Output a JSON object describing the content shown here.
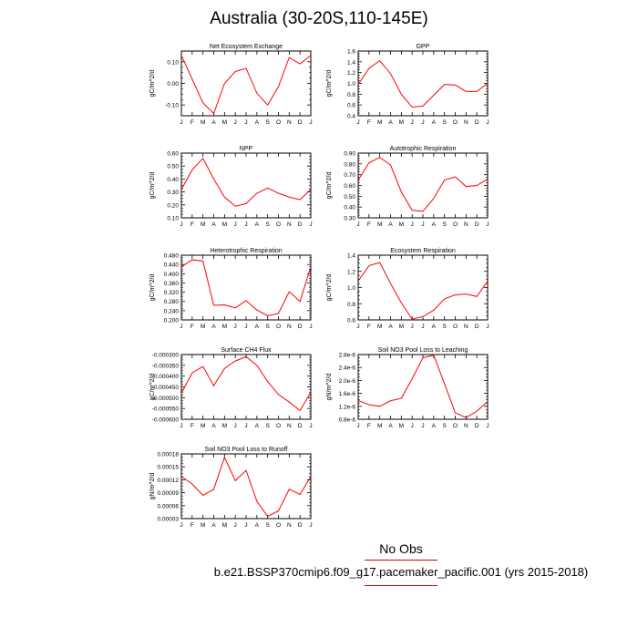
{
  "title": "Australia (30-20S,110-145E)",
  "legend": {
    "label": "No Obs",
    "caption": "b.e21.BSSP370cmip6.f09_g17.pacemaker_pacific.001 (yrs 2015-2018)"
  },
  "colors": {
    "line": "#ff0000",
    "legend_line": "#cc0000",
    "axis": "#000000"
  },
  "months": [
    "J",
    "F",
    "M",
    "A",
    "M",
    "J",
    "J",
    "A",
    "S",
    "O",
    "N",
    "D",
    "J"
  ],
  "chart_data": [
    {
      "type": "line",
      "title": "Net Ecosystem Exchange",
      "ylabel": "gC/m^2/d",
      "ylim": [
        -0.15,
        0.15
      ],
      "yticks": [
        "-0.10",
        "0.00",
        "0.10"
      ],
      "ytick_values": [
        -0.1,
        0.0,
        0.1
      ],
      "values": [
        0.13,
        0.02,
        -0.09,
        -0.14,
        0.0,
        0.055,
        0.07,
        -0.045,
        -0.1,
        -0.015,
        0.12,
        0.09,
        0.13
      ]
    },
    {
      "type": "line",
      "title": "GPP",
      "ylabel": "gC/m^2/d",
      "ylim": [
        0.4,
        1.6
      ],
      "yticks": [
        "0.4",
        "0.6",
        "0.8",
        "1.0",
        "1.2",
        "1.4",
        "1.6"
      ],
      "ytick_values": [
        0.4,
        0.6,
        0.8,
        1.0,
        1.2,
        1.4,
        1.6
      ],
      "values": [
        0.98,
        1.28,
        1.42,
        1.18,
        0.8,
        0.56,
        0.58,
        0.78,
        0.98,
        0.97,
        0.85,
        0.85,
        1.0
      ]
    },
    {
      "type": "line",
      "title": "NPP",
      "ylabel": "gC/m^2/d",
      "ylim": [
        0.1,
        0.6
      ],
      "yticks": [
        "0.10",
        "0.20",
        "0.30",
        "0.40",
        "0.50",
        "0.60"
      ],
      "ytick_values": [
        0.1,
        0.2,
        0.3,
        0.4,
        0.5,
        0.6
      ],
      "values": [
        0.32,
        0.47,
        0.56,
        0.4,
        0.26,
        0.19,
        0.21,
        0.29,
        0.33,
        0.29,
        0.26,
        0.24,
        0.32
      ]
    },
    {
      "type": "line",
      "title": "Autotrophic Respiration",
      "ylabel": "gC/m^2/d",
      "ylim": [
        0.3,
        0.9
      ],
      "yticks": [
        "0.30",
        "0.40",
        "0.50",
        "0.60",
        "0.70",
        "0.80",
        "0.90"
      ],
      "ytick_values": [
        0.3,
        0.4,
        0.5,
        0.6,
        0.7,
        0.8,
        0.9
      ],
      "values": [
        0.65,
        0.81,
        0.86,
        0.79,
        0.54,
        0.37,
        0.36,
        0.48,
        0.65,
        0.68,
        0.59,
        0.6,
        0.66
      ]
    },
    {
      "type": "line",
      "title": "Heterotrophic Respiration",
      "ylabel": "gC/m^2/d",
      "ylim": [
        0.2,
        0.48
      ],
      "yticks": [
        "0.200",
        "0.240",
        "0.280",
        "0.320",
        "0.360",
        "0.400",
        "0.440",
        "0.480"
      ],
      "ytick_values": [
        0.2,
        0.24,
        0.28,
        0.32,
        0.36,
        0.4,
        0.44,
        0.48
      ],
      "values": [
        0.43,
        0.46,
        0.455,
        0.263,
        0.265,
        0.252,
        0.284,
        0.243,
        0.218,
        0.228,
        0.322,
        0.28,
        0.43
      ]
    },
    {
      "type": "line",
      "title": "Ecosystem Respiration",
      "ylabel": "gC/m^2/d",
      "ylim": [
        0.6,
        1.4
      ],
      "yticks": [
        "0.6",
        "0.8",
        "1.0",
        "1.2",
        "1.4"
      ],
      "ytick_values": [
        0.6,
        0.8,
        1.0,
        1.2,
        1.4
      ],
      "values": [
        1.08,
        1.27,
        1.31,
        1.05,
        0.81,
        0.61,
        0.64,
        0.72,
        0.86,
        0.91,
        0.92,
        0.89,
        1.08
      ]
    },
    {
      "type": "line",
      "title": "Surface CH4 Flux",
      "ylabel": "gC/m^2/d",
      "ylim": [
        -0.0006,
        -0.0003
      ],
      "yticks": [
        "-0.000300",
        "-0.000350",
        "-0.000400",
        "-0.000450",
        "-0.000500",
        "-0.000550",
        "-0.000600"
      ],
      "ytick_values": [
        -0.0003,
        -0.00035,
        -0.0004,
        -0.00045,
        -0.0005,
        -0.00055,
        -0.0006
      ],
      "values": [
        -0.00048,
        -0.000385,
        -0.000355,
        -0.000445,
        -0.000365,
        -0.00033,
        -0.00031,
        -0.00035,
        -0.000425,
        -0.000485,
        -0.00052,
        -0.00056,
        -0.000475
      ]
    },
    {
      "type": "line",
      "title": "Soil NO3 Pool Loss to Leaching",
      "ylabel": "gN/m^2/d",
      "ylim": [
        8e-07,
        2.8e-06
      ],
      "yticks": [
        "0.8e-6",
        "1.2e-6",
        "1.6e-6",
        "2.0e-6",
        "2.4e-6",
        "2.8e-6"
      ],
      "ytick_values": [
        8e-07,
        1.2e-06,
        1.6e-06,
        2e-06,
        2.4e-06,
        2.8e-06
      ],
      "values": [
        1.38e-06,
        1.25e-06,
        1.2e-06,
        1.37e-06,
        1.45e-06,
        2.05e-06,
        2.7e-06,
        2.78e-06,
        1.9e-06,
        1e-06,
        8.5e-07,
        1.05e-06,
        1.35e-06
      ]
    },
    {
      "type": "line",
      "title": "Soil NO3 Pool Loss to Runoff",
      "ylabel": "gN/m^2/d",
      "ylim": [
        3e-05,
        0.00018
      ],
      "yticks": [
        "0.00003",
        "0.00006",
        "0.00009",
        "0.00012",
        "0.00015",
        "0.00018"
      ],
      "ytick_values": [
        3e-05,
        6e-05,
        9e-05,
        0.00012,
        0.00015,
        0.00018
      ],
      "values": [
        0.000128,
        0.00011,
        8.4e-05,
        9.8e-05,
        0.000172,
        0.000118,
        0.000142,
        7e-05,
        3.5e-05,
        4.8e-05,
        9.8e-05,
        8.6e-05,
        0.000128
      ]
    }
  ]
}
